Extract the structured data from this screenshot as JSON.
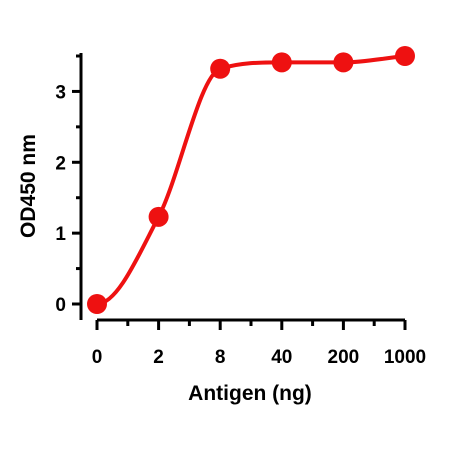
{
  "chart_data": {
    "type": "line",
    "title": "",
    "xlabel": "Antigen (ng)",
    "ylabel": "OD450 nm",
    "x_categories": [
      "0",
      "2",
      "8",
      "40",
      "200",
      "1000"
    ],
    "ylim": [
      0,
      3.5
    ],
    "yticks": [
      0,
      1,
      2,
      3
    ],
    "series": [
      {
        "color": "#ee1111",
        "points": [
          {
            "x": "0",
            "y": 0.0
          },
          {
            "x": "2",
            "y": 1.23
          },
          {
            "x": "8",
            "y": 3.32
          },
          {
            "x": "40",
            "y": 3.41
          },
          {
            "x": "200",
            "y": 3.41
          },
          {
            "x": "1000",
            "y": 3.5
          }
        ]
      }
    ],
    "grid": false,
    "legend": "none"
  }
}
